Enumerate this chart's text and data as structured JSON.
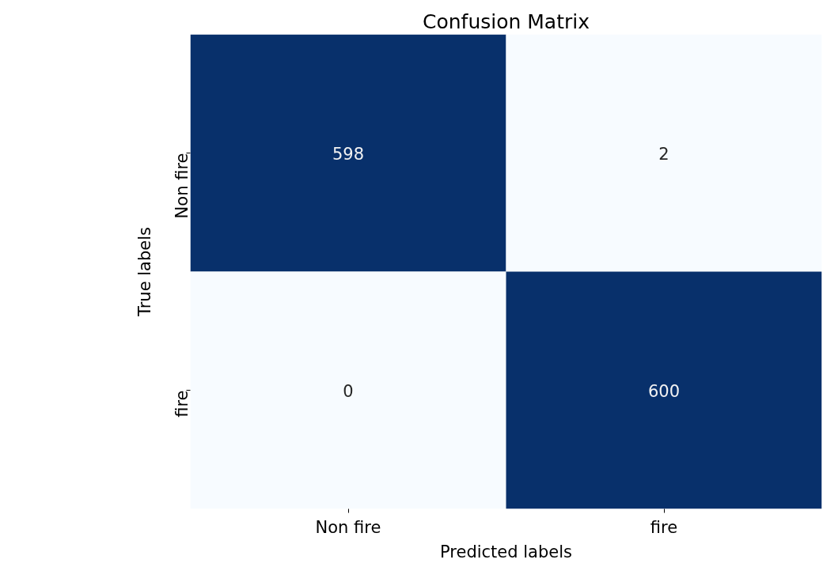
{
  "chart_data": {
    "type": "heatmap",
    "title": "Confusion Matrix",
    "xlabel": "Predicted labels",
    "ylabel": "True labels",
    "categories": [
      "Non fire",
      "fire"
    ],
    "y_categories": [
      "Non fire",
      "fire"
    ],
    "cells": [
      [
        598,
        2
      ],
      [
        0,
        600
      ]
    ],
    "colors": [
      [
        "#08306b",
        "#f7fbff"
      ],
      [
        "#f7fbff",
        "#08306b"
      ]
    ],
    "data_labels": true
  }
}
